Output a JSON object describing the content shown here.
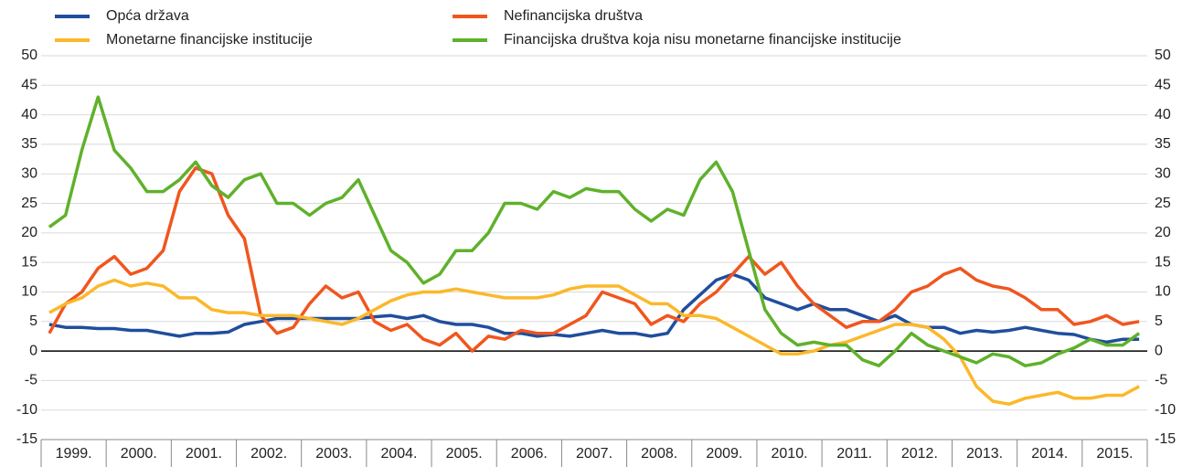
{
  "chart_data": {
    "type": "line",
    "categories": [
      null,
      "1999.",
      null,
      null,
      null,
      "2000.",
      null,
      null,
      null,
      "2001.",
      null,
      null,
      null,
      "2002.",
      null,
      null,
      null,
      "2003.",
      null,
      null,
      null,
      "2004.",
      null,
      null,
      null,
      "2005.",
      null,
      null,
      null,
      "2006.",
      null,
      null,
      null,
      "2007.",
      null,
      null,
      null,
      "2008.",
      null,
      null,
      null,
      "2009.",
      null,
      null,
      null,
      "2010.",
      null,
      null,
      null,
      "2011.",
      null,
      null,
      null,
      "2012.",
      null,
      null,
      null,
      "2013.",
      null,
      null,
      null,
      "2014.",
      null,
      null,
      null,
      "2015.",
      null,
      null
    ],
    "series": [
      {
        "name": "Opća država",
        "color": "#1f4e9c",
        "values": [
          4.5,
          4,
          4,
          3.8,
          3.8,
          3.5,
          3.5,
          3,
          2.5,
          3,
          3,
          3.2,
          4.5,
          5,
          5.5,
          5.5,
          5.5,
          5.5,
          5.5,
          5.5,
          5.8,
          6,
          5.5,
          6,
          5,
          4.5,
          4.5,
          4,
          3,
          3,
          2.5,
          2.8,
          2.5,
          3,
          3.5,
          3,
          3,
          2.5,
          3,
          7,
          9.5,
          12,
          13,
          12,
          9,
          8,
          7,
          8,
          7,
          7,
          6,
          5,
          6,
          4.5,
          4,
          4,
          3,
          3.5,
          3.2,
          3.5,
          4,
          3.5,
          3,
          2.8,
          2,
          1.5,
          2,
          2
        ]
      },
      {
        "name": "Nefinancijska društva",
        "color": "#f0561e",
        "values": [
          3,
          8,
          10,
          14,
          16,
          13,
          14,
          17,
          27,
          31,
          30,
          23,
          19,
          6,
          3,
          4,
          8,
          11,
          9,
          10,
          5,
          3.5,
          4.5,
          2,
          1,
          3,
          0,
          2.5,
          2,
          3.5,
          3,
          3,
          4.5,
          6,
          10,
          9,
          8,
          4.5,
          6,
          5,
          8,
          10,
          13,
          16,
          13,
          15,
          11,
          8,
          6,
          4,
          5,
          5,
          7,
          10,
          11,
          13,
          14,
          12,
          11,
          10.5,
          9,
          7,
          7,
          4.5,
          5,
          6,
          4.5,
          5
        ]
      },
      {
        "name": "Monetarne financijske institucije",
        "color": "#fbb829",
        "values": [
          6.5,
          8,
          9,
          11,
          12,
          11,
          11.5,
          11,
          9,
          9,
          7,
          6.5,
          6.5,
          6,
          6,
          6,
          5.5,
          5,
          4.5,
          5.5,
          7,
          8.5,
          9.5,
          10,
          10,
          10.5,
          10,
          9.5,
          9,
          9,
          9,
          9.5,
          10.5,
          11,
          11,
          11,
          9.5,
          8,
          8,
          6,
          6,
          5.5,
          4,
          2.5,
          1,
          -0.5,
          -0.5,
          0,
          1,
          1.5,
          2.5,
          3.5,
          4.5,
          4.5,
          4,
          2,
          -1,
          -6,
          -8.5,
          -9,
          -8,
          -7.5,
          -7,
          -8,
          -8,
          -7.5,
          -7.5,
          -6
        ]
      },
      {
        "name": "Financijska društva koja nisu monetarne financijske institucije",
        "color": "#5fb12b",
        "values": [
          21,
          23,
          34,
          43,
          34,
          31,
          27,
          27,
          29,
          32,
          28,
          26,
          29,
          30,
          25,
          25,
          23,
          25,
          26,
          29,
          23,
          17,
          15,
          11.5,
          13,
          17,
          17,
          20,
          25,
          25,
          24,
          27,
          26,
          27.5,
          27,
          27,
          24,
          22,
          24,
          23,
          29,
          32,
          27,
          17,
          7,
          3,
          1,
          1.5,
          1,
          1,
          -1.5,
          -2.5,
          0,
          3,
          1,
          0,
          -1,
          -2,
          -0.5,
          -1,
          -2.5,
          -2,
          -0.5,
          0.5,
          2,
          1,
          1,
          3
        ]
      }
    ],
    "ylim": [
      -15,
      50
    ],
    "yticks": [
      -15,
      -10,
      -5,
      0,
      5,
      10,
      15,
      20,
      25,
      30,
      35,
      40,
      45,
      50
    ],
    "grid": true
  }
}
